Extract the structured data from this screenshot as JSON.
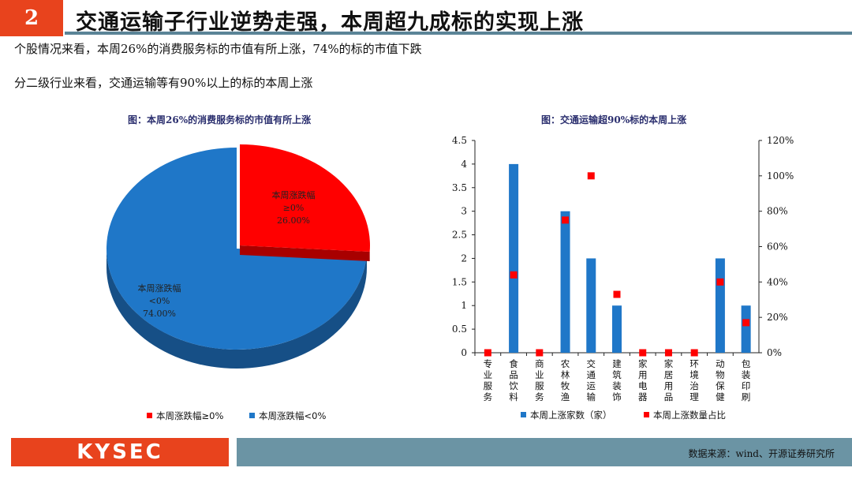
{
  "header": {
    "number": "2",
    "title": "交通运输子行业逆势走强，本周超九成标的实现上涨"
  },
  "body": {
    "line1": "个股情况来看，本周26%的消费服务标的市值有所上涨，74%的标的市值下跌",
    "line2": "分二级行业来看，交通运输等有90%以上的标的本周上涨"
  },
  "colors": {
    "red": "#ff0000",
    "blue": "#1f77c8",
    "blue_dark": "#164f86",
    "red_dark": "#a80000",
    "accent": "#e8431d",
    "bar_teal": "#6b94a4"
  },
  "footer": {
    "logo": "KYSEC",
    "source": "数据来源：wind、开源证券研究所"
  },
  "chart_data": [
    {
      "type": "pie",
      "title": "图：本周26%的消费服务标的市值有所上涨",
      "slices": [
        {
          "name": "本周涨跌幅≥0%",
          "label_line1": "本周涨跌幅",
          "label_line2": "≥0%",
          "value_label": "26.00%",
          "value": 26.0
        },
        {
          "name": "本周涨跌幅<0%",
          "label_line1": "本周涨跌幅",
          "label_line2": "<0%",
          "value_label": "74.00%",
          "value": 74.0
        }
      ],
      "legend": [
        "本周涨跌幅≥0%",
        "本周涨跌幅<0%"
      ],
      "legend_position": "bottom"
    },
    {
      "type": "bar",
      "title": "图：交通运输超90%标的本周上涨",
      "categories": [
        "专业服务",
        "食品饮料",
        "商业服务",
        "农林牧渔",
        "交通运输",
        "建筑装饰",
        "家用电器",
        "家居用品",
        "环境治理",
        "动物保健",
        "包装印刷"
      ],
      "series": [
        {
          "name": "本周上涨家数（家）",
          "axis": "left",
          "kind": "bar",
          "values": [
            0,
            4,
            0,
            3,
            2,
            1,
            0,
            0,
            0,
            2,
            1
          ]
        },
        {
          "name": "本周上涨数量占比",
          "axis": "right",
          "kind": "point",
          "values": [
            0,
            44,
            0,
            75,
            100,
            33,
            0,
            0,
            0,
            40,
            17
          ]
        }
      ],
      "y_left": {
        "min": 0,
        "max": 4.5,
        "ticks": [
          "0",
          "0.5",
          "1",
          "1.5",
          "2",
          "2.5",
          "3",
          "3.5",
          "4",
          "4.5"
        ]
      },
      "y_right": {
        "min": 0,
        "max": 120,
        "ticks": [
          "0%",
          "20%",
          "40%",
          "60%",
          "80%",
          "100%",
          "120%"
        ]
      },
      "legend_position": "bottom",
      "grid": false
    }
  ]
}
